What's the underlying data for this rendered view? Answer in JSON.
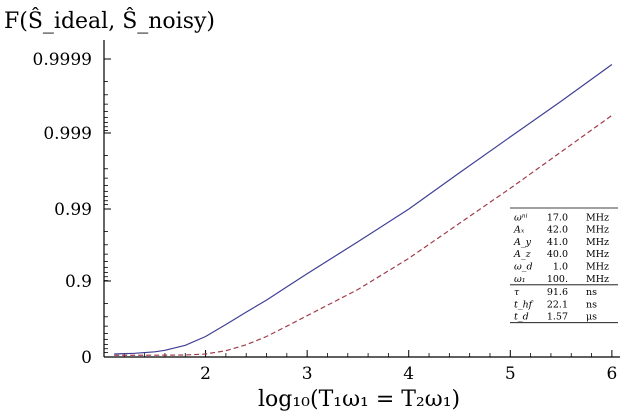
{
  "chart_data": {
    "type": "line",
    "ylabel": "F(Ŝ_ideal, Ŝ_noisy)",
    "xlabel": "log₁₀(T₁ω₁ = T₂ω₁)",
    "xlim": [
      1.0,
      6.08
    ],
    "y_scale": "log(1 - F)",
    "x_ticks": [
      2,
      3,
      4,
      5,
      6
    ],
    "x_tick_labels": [
      "2",
      "3",
      "4",
      "5",
      "6"
    ],
    "y_ticks": [
      0,
      0.9,
      0.99,
      0.999,
      0.9999
    ],
    "y_tick_labels": [
      "0",
      "0.9",
      "0.99",
      "0.999",
      "0.9999"
    ],
    "series": [
      {
        "style": "solid",
        "color": "#3f3f96",
        "x": [
          1.1,
          1.3,
          1.5,
          1.6,
          1.8,
          2.0,
          2.2,
          2.4,
          2.6,
          2.8,
          3.0,
          3.5,
          4.0,
          4.5,
          5.0,
          5.5,
          6.0
        ],
        "y": [
          0.06,
          0.08,
          0.12,
          0.16,
          0.28,
          0.45,
          0.62,
          0.74,
          0.82,
          0.88,
          0.92,
          0.97,
          0.989,
          0.9964,
          0.9988,
          0.9996,
          0.99987
        ]
      },
      {
        "style": "dashed",
        "color": "#a03c4b",
        "x": [
          1.1,
          1.5,
          1.8,
          2.0,
          2.2,
          2.4,
          2.6,
          2.8,
          3.0,
          3.2,
          3.5,
          4.0,
          4.5,
          5.0,
          5.5,
          6.0
        ],
        "y": [
          0.02,
          0.025,
          0.03,
          0.06,
          0.15,
          0.29,
          0.45,
          0.6,
          0.71,
          0.79,
          0.87,
          0.95,
          0.983,
          0.9942,
          0.9981,
          0.99938
        ]
      }
    ],
    "parameter_table": {
      "rows": [
        {
          "symbol": "ωⁿⁱ",
          "value": "17.0",
          "unit": "MHz"
        },
        {
          "symbol": "Aₓ",
          "value": "42.0",
          "unit": "MHz"
        },
        {
          "symbol": "A_y",
          "value": "41.0",
          "unit": "MHz"
        },
        {
          "symbol": "A_z",
          "value": "40.0",
          "unit": "MHz"
        },
        {
          "symbol": "ω_d",
          "value": "1.0",
          "unit": "MHz"
        },
        {
          "symbol": "ω₁",
          "value": "100.",
          "unit": "MHz"
        },
        {
          "symbol": "τ",
          "value": "91.6",
          "unit": "ns"
        },
        {
          "symbol": "t_hf",
          "value": "22.1",
          "unit": "ns"
        },
        {
          "symbol": "t_d",
          "value": "1.57",
          "unit": "μs"
        }
      ]
    }
  }
}
